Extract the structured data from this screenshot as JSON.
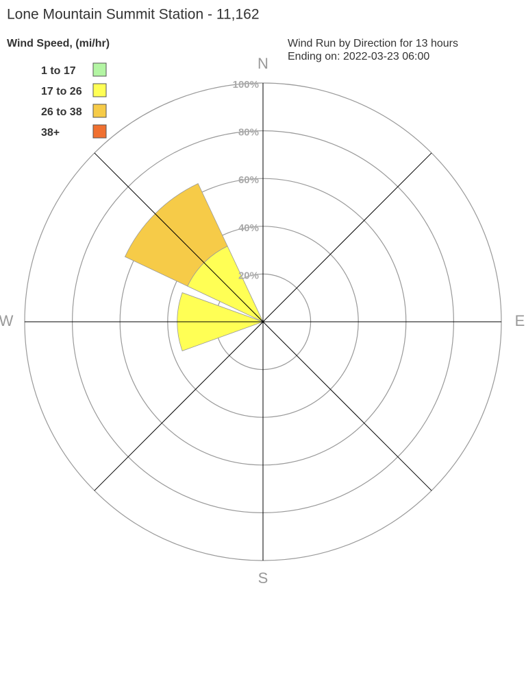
{
  "chart_data": {
    "type": "windrose",
    "title": "Lone Mountain Summit Station - 11,162",
    "subtitle": [
      "Wind Run by Direction for 13 hours",
      "Ending on: 2022-03-23 06:00"
    ],
    "legend_title": "Wind Speed, (mi/hr)",
    "categories": [
      "N",
      null,
      "E",
      null,
      "S",
      null,
      "W",
      null
    ],
    "series": [
      {
        "name": "1 to 17",
        "color": "#b3f5a3",
        "values": [
          0,
          0,
          0,
          0,
          0,
          0,
          0,
          0
        ]
      },
      {
        "name": "17 to 26",
        "color": "#ffff55",
        "values": [
          0,
          0,
          0,
          0,
          0,
          0,
          36,
          35
        ]
      },
      {
        "name": "26 to 38",
        "color": "#f6cb48",
        "values": [
          0,
          0,
          0,
          0,
          0,
          0,
          0,
          29
        ]
      },
      {
        "name": "38+",
        "color": "#f07030",
        "values": [
          0,
          0,
          0,
          0,
          0,
          0,
          0,
          0
        ]
      }
    ],
    "rlim": [
      0,
      100
    ],
    "rticks": [
      {
        "value": 20,
        "label": "20%"
      },
      {
        "value": 40,
        "label": "40%"
      },
      {
        "value": 60,
        "label": "60%"
      },
      {
        "value": 80,
        "label": "80%"
      },
      {
        "value": 100,
        "label": "100%"
      }
    ],
    "legend": "top-left"
  }
}
